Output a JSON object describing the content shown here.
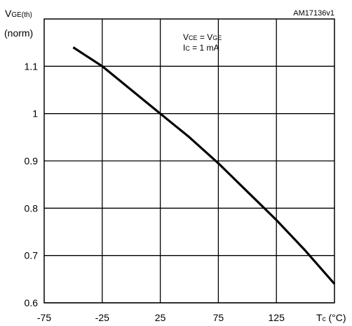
{
  "chart_data": {
    "type": "line",
    "title": "",
    "reference": "AM17136v1",
    "ylabel_main": "V",
    "ylabel_sub": "GE(th)",
    "ylabel_line2": "(norm)",
    "xlabel_main": "T",
    "xlabel_sub": "c",
    "xlabel_unit": " (°C)",
    "annotation": {
      "line1": {
        "p1": "V",
        "s1": "CE",
        "mid": " = V",
        "s2": "GE"
      },
      "line2": {
        "p1": "I",
        "s1": "C",
        "rest": " = 1 mA"
      }
    },
    "xlim": [
      -75,
      175
    ],
    "ylim": [
      0.6,
      1.2
    ],
    "xticks": [
      -75,
      -25,
      25,
      75,
      125
    ],
    "xtick_labels": [
      "-75",
      "-25",
      "25",
      "75",
      "125"
    ],
    "yticks": [
      0.6,
      0.7,
      0.8,
      0.9,
      1.0,
      1.1
    ],
    "ytick_labels": [
      "0.6",
      "0.7",
      "0.8",
      "0.9",
      "1",
      "1.1"
    ],
    "grid": true,
    "series": [
      {
        "x": [
          -50,
          -25,
          0,
          25,
          50,
          75,
          100,
          125,
          150,
          175
        ],
        "y": [
          1.14,
          1.1,
          1.05,
          1.0,
          0.95,
          0.895,
          0.835,
          0.775,
          0.71,
          0.64
        ]
      }
    ]
  }
}
